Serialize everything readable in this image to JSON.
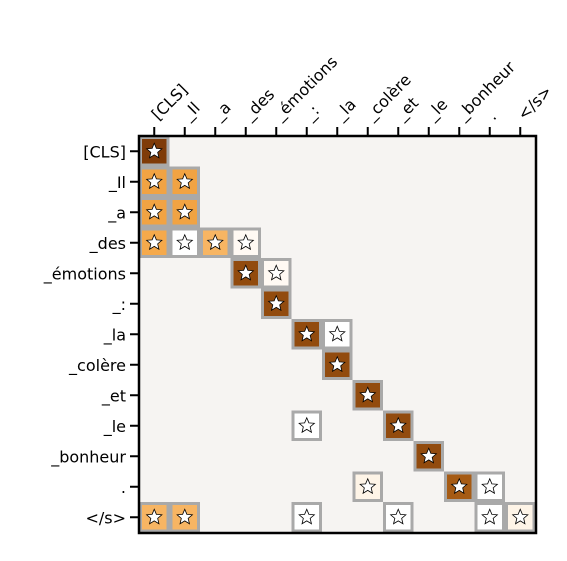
{
  "chart_data": {
    "type": "heatmap",
    "title": "",
    "xlabel": "",
    "ylabel": "",
    "x_labels": [
      "[CLS]",
      "_Il",
      "_a",
      "_des",
      "_émotions",
      "_:",
      "_la",
      "_colère",
      "_et",
      "_le",
      "_bonheur",
      ".",
      "</s>"
    ],
    "y_labels": [
      "[CLS]",
      "_Il",
      "_a",
      "_des",
      "_émotions",
      "_:",
      "_la",
      "_colère",
      "_et",
      "_le",
      "_bonheur",
      ".",
      "</s>"
    ],
    "cells": [
      [
        0,
        0,
        1.0,
        true
      ],
      [
        1,
        0,
        0.55,
        true
      ],
      [
        1,
        1,
        0.55,
        true
      ],
      [
        2,
        0,
        0.55,
        true
      ],
      [
        2,
        1,
        0.55,
        true
      ],
      [
        3,
        0,
        0.5,
        true
      ],
      [
        3,
        1,
        0.0,
        true
      ],
      [
        3,
        2,
        0.45,
        true
      ],
      [
        3,
        3,
        0.05,
        true
      ],
      [
        4,
        3,
        0.95,
        true
      ],
      [
        4,
        4,
        0.05,
        true
      ],
      [
        5,
        4,
        0.95,
        true
      ],
      [
        6,
        5,
        0.95,
        true
      ],
      [
        6,
        6,
        0.0,
        true
      ],
      [
        7,
        6,
        0.95,
        true
      ],
      [
        8,
        7,
        0.95,
        true
      ],
      [
        9,
        5,
        0.0,
        true
      ],
      [
        9,
        8,
        0.95,
        true
      ],
      [
        10,
        9,
        0.95,
        true
      ],
      [
        11,
        7,
        0.1,
        true
      ],
      [
        11,
        10,
        0.9,
        true
      ],
      [
        11,
        11,
        0.0,
        true
      ],
      [
        12,
        0,
        0.45,
        true
      ],
      [
        12,
        1,
        0.45,
        true
      ],
      [
        12,
        5,
        0.0,
        true
      ],
      [
        12,
        8,
        0.0,
        true
      ],
      [
        12,
        11,
        0.0,
        true
      ],
      [
        12,
        12,
        0.1,
        true
      ]
    ],
    "grid": false,
    "colors": {
      "background": "#f6f4f2",
      "cell_border": "#a9a9a9",
      "axis": "#000000",
      "scale": [
        "#ffffff",
        "#fde3c4",
        "#f5a94b",
        "#e08a25",
        "#7f3b08"
      ]
    }
  }
}
